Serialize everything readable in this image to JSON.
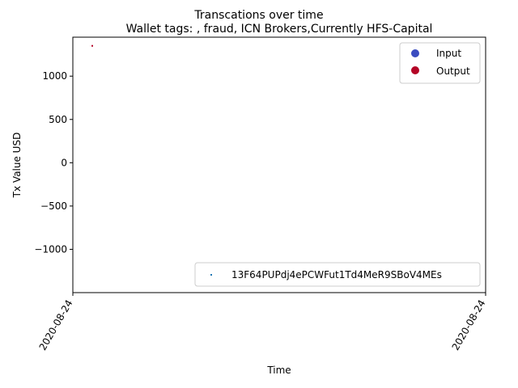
{
  "chart_data": {
    "type": "scatter",
    "suptitle": "Transcations over time",
    "title": "Wallet tags: , fraud, ICN Brokers,Currently HFS-Capital",
    "xlabel": "Time",
    "ylabel": "Tx Value USD",
    "x_tick_labels": [
      "2020-08-24",
      "2020-08-24"
    ],
    "y_ticks": [
      -1000,
      -500,
      0,
      500,
      1000
    ],
    "ylim": [
      -1500,
      1450
    ],
    "grid": false,
    "series": [
      {
        "name": "Output",
        "color": "#b40426",
        "points": [
          {
            "x": "2020-08-24",
            "y": 1350
          }
        ]
      }
    ],
    "legend_type": {
      "placement": "top-right",
      "entries": [
        {
          "label": "Input",
          "color": "#3b4cc0"
        },
        {
          "label": "Output",
          "color": "#b40426"
        }
      ]
    },
    "legend_address": {
      "placement": "bottom-right",
      "entries": [
        {
          "label": "13F64PUPdj4ePCWFut1Td4MeR9SBoV4MEs",
          "color": "#1f77b4"
        }
      ]
    }
  }
}
